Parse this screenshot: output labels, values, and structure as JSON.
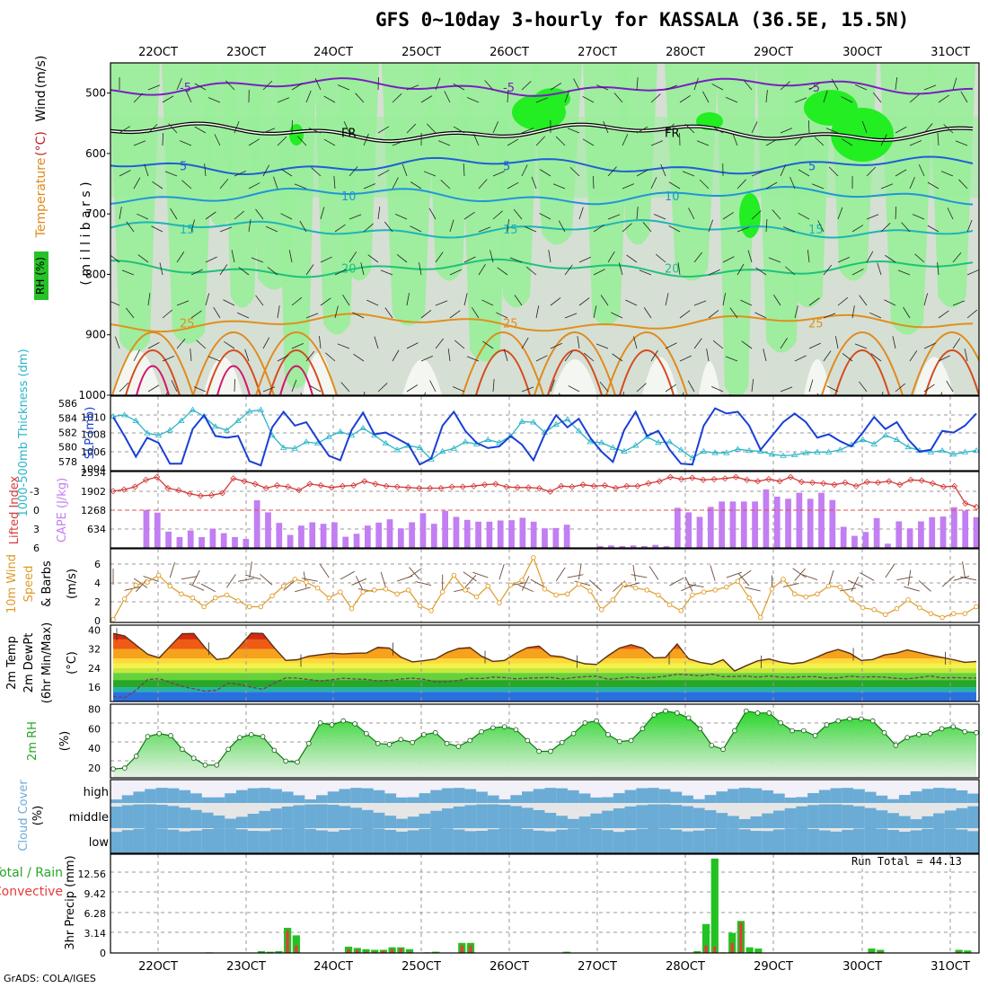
{
  "title": "GFS 0~10day 3-hourly for KASSALA (36.5E, 15.5N)",
  "credit": "GrADS: COLA/IGES",
  "run_total": "Run Total = 44.13",
  "date_labels": [
    "22OCT",
    "23OCT",
    "24OCT",
    "25OCT",
    "26OCT",
    "27OCT",
    "28OCT",
    "29OCT",
    "30OCT",
    "31OCT"
  ],
  "colors": {
    "pink": "#ff33ff",
    "rh_green": "#27c227",
    "rh_light": "#99ee99",
    "cape": "#c27ef2",
    "lifted": "#d43a3a",
    "slp": "#1a3fd6",
    "thick": "#2ab5c8",
    "wind10": "#e09a28",
    "cloud": "#6aacd6"
  },
  "chart_data": [
    {
      "type": "heatmap",
      "panel": "vertical-profile",
      "ylabel_parts": [
        "RH (%)",
        "Temperature",
        "(°C)",
        "Wind",
        "(m/s)"
      ],
      "ylabel_units": "( m i l l i b a r s )",
      "y_ticks": [
        "500",
        "600",
        "700",
        "800",
        "900",
        "1000"
      ],
      "ylim": [
        450,
        1000
      ],
      "isotherms": [
        {
          "label": "-5",
          "p": 490
        },
        {
          "label": "FR",
          "p": 565
        },
        {
          "label": "5",
          "p": 620
        },
        {
          "label": "10",
          "p": 670
        },
        {
          "label": "15",
          "p": 725
        },
        {
          "label": "20",
          "p": 790
        },
        {
          "label": "25",
          "p": 880
        }
      ]
    },
    {
      "type": "line",
      "panel": "slp-thickness",
      "left_label": "1000-500mb Thickness (dm)",
      "right_label": "SLP (mb)",
      "left_ticks": [
        "586",
        "584",
        "582",
        "580",
        "578"
      ],
      "right_ticks": [
        "1010",
        "1008",
        "1006",
        "1004"
      ],
      "left_ylim": [
        577,
        586.5
      ],
      "right_ylim": [
        1004,
        1012
      ],
      "series": [
        {
          "name": "SLP",
          "values": [
            1010.0,
            1007.8,
            1005.4,
            1007.6,
            1007.0,
            1004.6,
            1004.6,
            1008.6,
            1010.2,
            1007.8,
            1007.6,
            1007.8,
            1004.9,
            1004.4,
            1008.8,
            1010.6,
            1009.0,
            1009.4,
            1007.4,
            1005.5,
            1005.0,
            1008.5,
            1010.5,
            1008.0,
            1008.2,
            1007.5,
            1006.8,
            1004.5,
            1005.2,
            1009.0,
            1010.6,
            1008.4,
            1007.0,
            1006.4,
            1006.6,
            1007.8,
            1006.8,
            1005.0,
            1008.0,
            1010.2,
            1008.8,
            1009.8,
            1007.6,
            1006.0,
            1004.8,
            1008.5,
            1010.6,
            1007.8,
            1008.4,
            1006.2,
            1004.6,
            1004.5,
            1009.0,
            1011.0,
            1010.4,
            1010.6,
            1009.0,
            1006.2,
            1007.8,
            1009.4,
            1010.4,
            1009.4,
            1007.6,
            1008.0,
            1007.2,
            1006.6,
            1008.2,
            1010.0,
            1008.6,
            1009.4,
            1007.4,
            1006.0,
            1006.2,
            1008.4,
            1008.2,
            1009.0,
            1010.4
          ]
        },
        {
          "name": "Thickness",
          "values": [
            584.2,
            584.4,
            583.6,
            581.9,
            581.6,
            582.3,
            583.6,
            585.1,
            584.2,
            582.8,
            582.3,
            583.6,
            584.9,
            585.1,
            581.6,
            579.9,
            579.8,
            580.7,
            580.5,
            581.4,
            582.1,
            581.6,
            582.6,
            581.6,
            580.5,
            579.6,
            580.2,
            579.9,
            578.3,
            579.4,
            579.8,
            580.7,
            580.4,
            581.0,
            580.6,
            581.5,
            583.5,
            583.4,
            582.0,
            583.1,
            583.8,
            582.2,
            580.7,
            580.6,
            579.9,
            579.4,
            580.2,
            581.4,
            580.6,
            580.7,
            579.6,
            578.5,
            579.4,
            579.2,
            579.2,
            579.7,
            579.5,
            579.4,
            579.0,
            578.8,
            578.9,
            579.2,
            579.3,
            579.3,
            579.6,
            580.3,
            581.0,
            580.4,
            581.6,
            581.0,
            580.0,
            579.5,
            579.3,
            579.5,
            579.0,
            579.3,
            579.5
          ]
        }
      ]
    },
    {
      "type": "bar",
      "panel": "cape-lifted-index",
      "left_label": "Lifted Index",
      "right_label": "CAPE (J/kg)",
      "left_ticks": [
        "-3",
        "0",
        "3",
        "6"
      ],
      "right_ticks": [
        "2534",
        "1902",
        "1268",
        "634"
      ],
      "cape_ylim": [
        0,
        2534
      ],
      "li_ylim": [
        -5,
        6
      ],
      "series": [
        {
          "name": "CAPE",
          "values": [
            0,
            0,
            0,
            1260,
            1170,
            540,
            360,
            580,
            360,
            640,
            490,
            360,
            300,
            1580,
            1180,
            830,
            430,
            740,
            850,
            800,
            850,
            370,
            470,
            740,
            840,
            950,
            650,
            850,
            1150,
            800,
            1230,
            1030,
            930,
            870,
            870,
            910,
            920,
            1000,
            870,
            650,
            660,
            770,
            0,
            0,
            60,
            80,
            60,
            80,
            60,
            100,
            60,
            1330,
            1180,
            1030,
            1360,
            1540,
            1540,
            1540,
            1540,
            1940,
            1700,
            1630,
            1830,
            1630,
            1830,
            1590,
            700,
            400,
            530,
            990,
            140,
            880,
            650,
            880,
            1020,
            1040,
            1350,
            1240,
            1020
          ]
        },
        {
          "name": "Lifted Index",
          "values": [
            -2.2,
            -2.4,
            -2.8,
            -3.8,
            -4.2,
            -2.6,
            -2.3,
            -1.8,
            -1.5,
            -1.6,
            -1.9,
            -4.0,
            -3.6,
            -3.2,
            -2.6,
            -3.0,
            -2.8,
            -2.3,
            -3.2,
            -3.0,
            -2.7,
            -2.9,
            -3.0,
            -3.6,
            -3.2,
            -2.9,
            -2.8,
            -2.7,
            -2.6,
            -2.6,
            -2.6,
            -2.8,
            -2.8,
            -2.9,
            -3.1,
            -3.2,
            -2.8,
            -2.7,
            -2.7,
            -2.6,
            -2.1,
            -2.9,
            -2.8,
            -3.1,
            -2.9,
            -3.0,
            -2.6,
            -2.9,
            -2.9,
            -3.3,
            -3.6,
            -4.2,
            -3.9,
            -4.1,
            -3.8,
            -3.9,
            -4.0,
            -4.2,
            -3.8,
            -3.6,
            -3.9,
            -3.6,
            -4.2,
            -3.5,
            -3.4,
            -3.3,
            -3.1,
            -3.4,
            -2.9,
            -3.5,
            -3.4,
            -3.6,
            -3.1,
            -3.8,
            -3.7,
            -3.3,
            -2.8,
            -2.9,
            -0.4,
            0.1
          ]
        }
      ]
    },
    {
      "type": "line",
      "panel": "10m-wind",
      "left_label_parts": [
        "10m Wind",
        "Speed",
        "& Barbs"
      ],
      "units": "(m/s)",
      "ticks": [
        "6",
        "4",
        "2",
        "0"
      ],
      "ylim": [
        0,
        7.5
      ],
      "series": [
        {
          "name": "10m Wind Speed",
          "values": [
            0.3,
            2.4,
            3.8,
            4.1,
            4.8,
            3.7,
            2.9,
            2.5,
            1.6,
            2.5,
            2.8,
            2.2,
            1.6,
            1.6,
            2.7,
            3.7,
            4.4,
            4.1,
            3.5,
            2.5,
            3.1,
            1.4,
            3.1,
            3.3,
            3.4,
            2.9,
            3.3,
            1.7,
            1.2,
            3.1,
            4.8,
            3.3,
            2.6,
            3.7,
            2.0,
            3.8,
            4.3,
            6.6,
            3.4,
            2.8,
            2.9,
            3.9,
            3.2,
            1.3,
            2.3,
            3.9,
            3.5,
            3.3,
            2.8,
            1.8,
            1.2,
            2.8,
            3.1,
            3.3,
            3.6,
            4.2,
            2.5,
            0.5,
            3.4,
            4.4,
            2.9,
            2.6,
            2.9,
            3.7,
            3.6,
            2.4,
            1.5,
            1.3,
            0.8,
            1.4,
            2.3,
            1.5,
            0.9,
            0.5,
            0.9,
            0.9,
            1.6
          ]
        }
      ]
    },
    {
      "type": "area",
      "panel": "2m-temp",
      "left_label_parts": [
        "2m Temp",
        "2m DewPt",
        "(6hr Min/Max)"
      ],
      "units": "(°C)",
      "ticks": [
        "40",
        "32",
        "24",
        "16"
      ],
      "ylim": [
        10,
        42
      ],
      "series": [
        {
          "name": "2m Temp",
          "values": [
            38.5,
            37.5,
            33.6,
            29.8,
            28.3,
            33.4,
            38.4,
            38.5,
            32.5,
            27.6,
            28.2,
            33.2,
            38.6,
            38.5,
            32.5,
            27.2,
            27.5,
            29.0,
            29.6,
            30.2,
            29.9,
            30.2,
            30.3,
            32.7,
            32.4,
            28.6,
            26.6,
            27.1,
            27.8,
            30.5,
            32.2,
            32.6,
            29.0,
            26.8,
            27.2,
            30.2,
            32.6,
            33.2,
            29.2,
            28.7,
            27.1,
            25.8,
            25.5,
            29.2,
            32.4,
            33.8,
            32.4,
            28.3,
            28.5,
            34.1,
            27.9,
            26.4,
            25.6,
            27.5,
            22.8,
            25.0,
            27.0,
            27.8,
            26.5,
            25.8,
            26.4,
            28.3,
            30.4,
            31.8,
            30.2,
            27.2,
            27.6,
            29.5,
            30.2,
            31.6,
            30.5,
            29.4,
            28.5,
            27.5,
            26.4,
            26.8
          ]
        },
        {
          "name": "2m DewPt",
          "values": [
            12.1,
            11.6,
            14.8,
            19.2,
            19.6,
            17.9,
            16.3,
            15.3,
            14.3,
            14.7,
            17.7,
            17.1,
            16.0,
            15.1,
            17.7,
            19.9,
            19.8,
            19.2,
            18.6,
            19.1,
            19.8,
            19.4,
            19.3,
            18.6,
            18.8,
            19.4,
            19.8,
            19.3,
            18.2,
            18.3,
            18.8,
            19.8,
            19.6,
            20.2,
            20.0,
            19.5,
            19.8,
            19.9,
            20.1,
            19.4,
            20.0,
            20.4,
            20.6,
            19.3,
            19.7,
            20.3,
            19.7,
            20.1,
            20.6,
            21.4,
            21.2,
            20.7,
            21.5,
            20.4,
            20.5,
            20.6,
            20.2,
            20.7,
            20.2,
            20.1,
            20.4,
            20.4,
            19.8,
            19.9,
            20.6,
            20.2,
            20.4,
            20.2,
            19.7,
            19.5,
            20.0,
            20.7,
            19.9,
            20.0,
            19.9,
            19.8
          ]
        }
      ]
    },
    {
      "type": "area",
      "panel": "2m-rh",
      "left_label": "2m RH",
      "units": "(%)",
      "ticks": [
        "80",
        "60",
        "40",
        "20"
      ],
      "ylim": [
        10,
        85
      ],
      "series": [
        {
          "name": "2m RH",
          "values": [
            19,
            20,
            32,
            52,
            55,
            53,
            39,
            30,
            23,
            23,
            39,
            51,
            54,
            52,
            38,
            27,
            26,
            45,
            66,
            64,
            68,
            65,
            55,
            45,
            44,
            49,
            46,
            54,
            56,
            45,
            42,
            48,
            57,
            61,
            62,
            59,
            48,
            37,
            37,
            46,
            55,
            66,
            68,
            54,
            47,
            48,
            60,
            74,
            78,
            76,
            71,
            60,
            43,
            39,
            58,
            78,
            76,
            76,
            66,
            58,
            58,
            53,
            64,
            68,
            70,
            70,
            68,
            56,
            43,
            51,
            54,
            55,
            60,
            62,
            57,
            56
          ]
        }
      ]
    },
    {
      "type": "heatmap",
      "panel": "cloud-cover",
      "left_label": "Cloud Cover",
      "units": "(%)",
      "rows": [
        "high",
        "middle",
        "low"
      ]
    },
    {
      "type": "bar",
      "panel": "3hr-precip",
      "left_label_parts": [
        "Total / Rain",
        "Convective"
      ],
      "ylabel": "3hr Precip (mm)",
      "ticks": [
        "12.56",
        "9.42",
        "6.28",
        "3.14",
        "0"
      ],
      "ylim": [
        0,
        15.7
      ],
      "series": [
        {
          "name": "Total",
          "values": [
            0,
            0,
            0,
            0,
            0,
            0,
            0,
            0,
            0,
            0,
            0,
            0.1,
            0,
            0,
            0,
            0,
            0,
            0.3,
            0.2,
            0.3,
            4.0,
            2.8,
            0,
            0,
            0,
            0,
            0,
            1.0,
            0.8,
            0.6,
            0.5,
            0.5,
            0.9,
            0.9,
            0.6,
            0,
            0.1,
            0.2,
            0,
            0,
            1.6,
            1.6,
            0,
            0,
            0,
            0,
            0,
            0,
            0,
            0,
            0,
            0,
            0.2,
            0,
            0,
            0,
            0,
            0,
            0,
            0,
            0,
            0,
            0,
            0,
            0,
            0,
            0,
            0.3,
            4.6,
            15.0,
            0.1,
            3.2,
            5.1,
            0.9,
            0.7,
            0,
            0,
            0,
            0,
            0,
            0,
            0,
            0,
            0,
            0,
            0,
            0,
            0.7,
            0.5,
            0,
            0,
            0,
            0,
            0,
            0,
            0,
            0,
            0.5,
            0.4,
            0
          ]
        },
        {
          "name": "Convective",
          "values": [
            0,
            0,
            0,
            0,
            0,
            0,
            0,
            0,
            0,
            0,
            0,
            0,
            0,
            0,
            0,
            0,
            0,
            0.1,
            0.1,
            0.1,
            3.6,
            1.2,
            0,
            0,
            0,
            0,
            0,
            0.6,
            0.5,
            0.2,
            0.2,
            0.4,
            0.6,
            0.7,
            0.2,
            0,
            0,
            0,
            0,
            0,
            1.2,
            1.2,
            0,
            0,
            0,
            0,
            0,
            0,
            0,
            0,
            0,
            0,
            0,
            0,
            0,
            0,
            0,
            0,
            0,
            0,
            0,
            0,
            0,
            0,
            0,
            0,
            0,
            0.1,
            1.2,
            1.0,
            0,
            1.6,
            4.8,
            0.1,
            0.1,
            0,
            0,
            0,
            0,
            0,
            0,
            0,
            0,
            0,
            0,
            0,
            0,
            0.2,
            0.2,
            0,
            0,
            0,
            0,
            0,
            0,
            0,
            0,
            0.2,
            0.1,
            0
          ]
        }
      ]
    }
  ]
}
